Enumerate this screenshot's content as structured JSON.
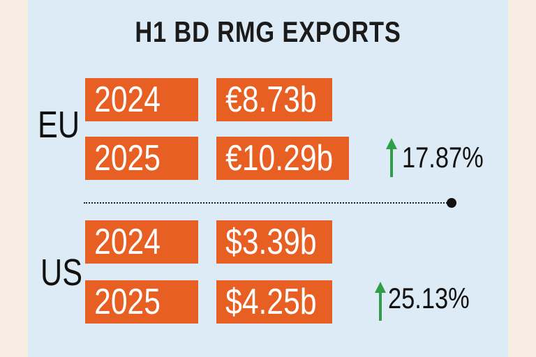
{
  "title": "H1 BD RMG EXPORTS",
  "colors": {
    "bar": "#e75f22",
    "up_arrow": "#2e9e48",
    "panel": "#dcebf5"
  },
  "chart_data": {
    "type": "table",
    "title": "H1 BD RMG EXPORTS",
    "groups": [
      {
        "name": "EU",
        "rows": [
          {
            "year": "2024",
            "value_label": "€8.73b",
            "value": 8.73,
            "unit": "b EUR"
          },
          {
            "year": "2025",
            "value_label": "€10.29b",
            "value": 10.29,
            "unit": "b EUR"
          }
        ],
        "change": "17.87%",
        "direction": "up"
      },
      {
        "name": "US",
        "rows": [
          {
            "year": "2024",
            "value_label": "$3.39b",
            "value": 3.39,
            "unit": "b USD"
          },
          {
            "year": "2025",
            "value_label": "$4.25b",
            "value": 4.25,
            "unit": "b USD"
          }
        ],
        "change": "25.13%",
        "direction": "up"
      }
    ]
  }
}
